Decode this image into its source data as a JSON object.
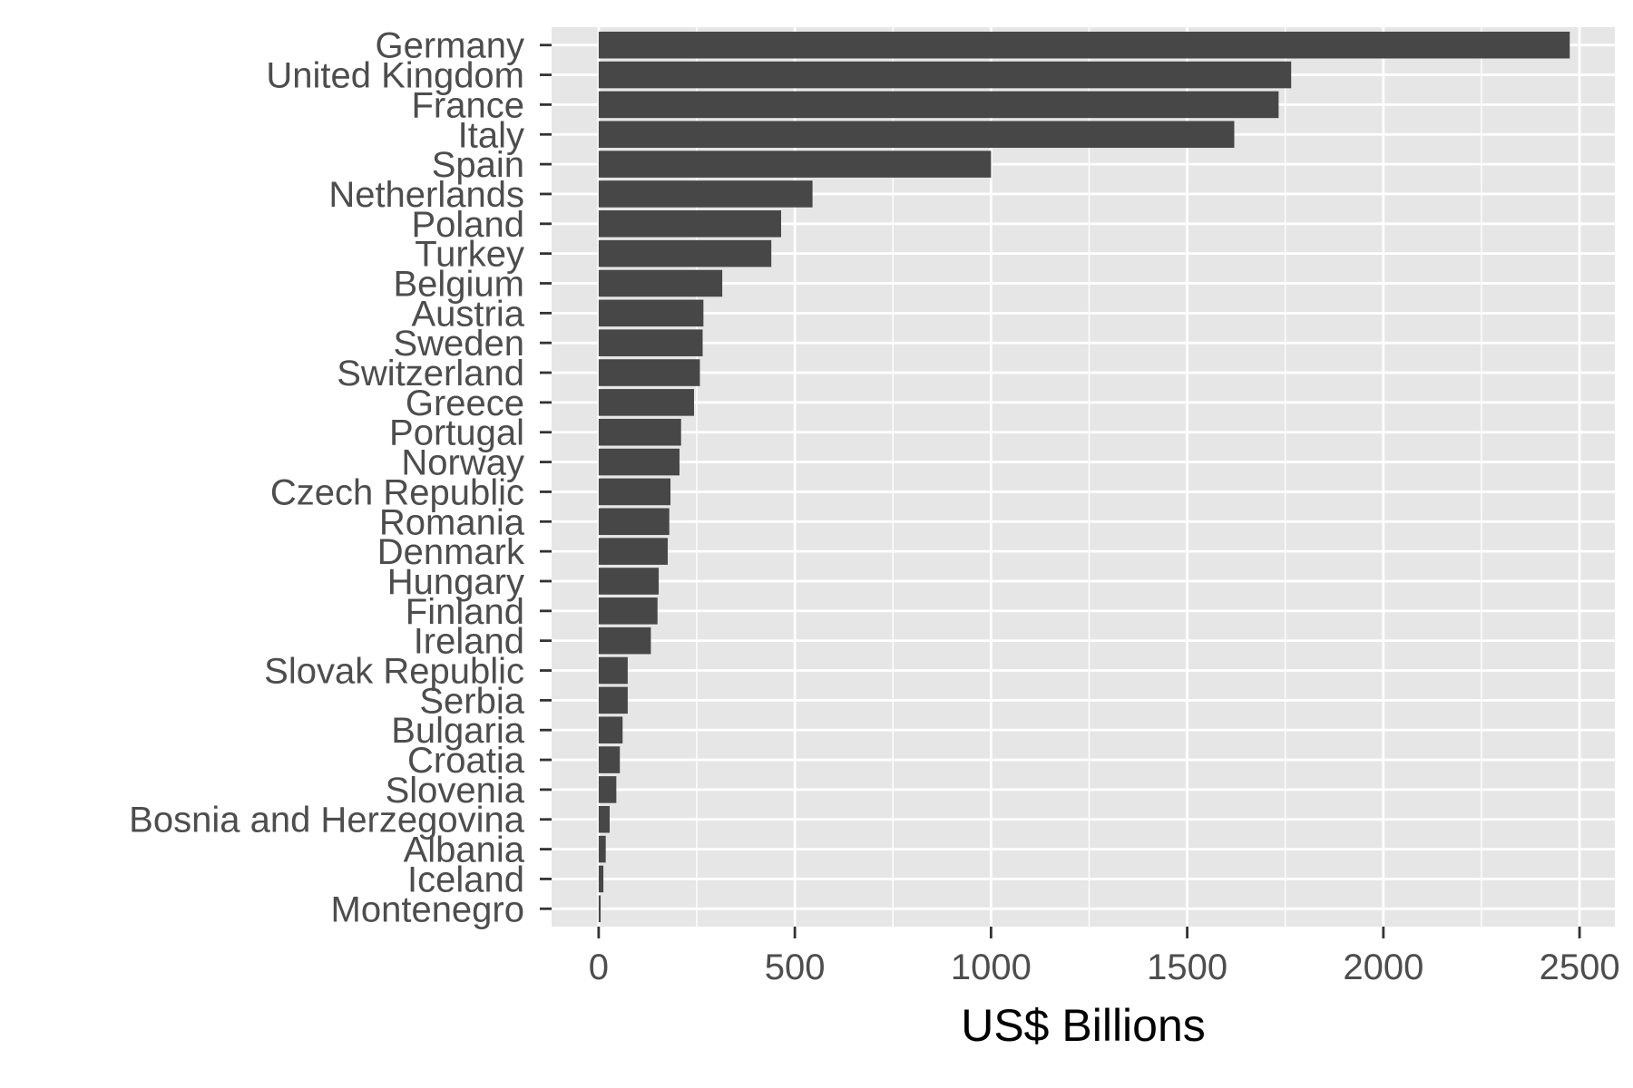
{
  "chart_data": {
    "type": "bar",
    "orientation": "horizontal",
    "title": "",
    "xlabel": "US$ Billions",
    "ylabel": "",
    "xlim": [
      -120,
      2590
    ],
    "xticks": [
      0,
      500,
      1000,
      1500,
      2000,
      2500
    ],
    "grid": true,
    "legend": "none",
    "bar_color": "#474747",
    "panel_color": "#e6e6e6",
    "grid_color": "#ffffff",
    "categories": [
      "Germany",
      "United Kingdom",
      "France",
      "Italy",
      "Spain",
      "Netherlands",
      "Poland",
      "Turkey",
      "Belgium",
      "Austria",
      "Sweden",
      "Switzerland",
      "Greece",
      "Portugal",
      "Norway",
      "Czech Republic",
      "Romania",
      "Denmark",
      "Hungary",
      "Finland",
      "Ireland",
      "Slovak Republic",
      "Serbia",
      "Bulgaria",
      "Croatia",
      "Slovenia",
      "Bosnia and Herzegovina",
      "Albania",
      "Iceland",
      "Montenegro"
    ],
    "values": [
      2475,
      1765,
      1733,
      1620,
      1000,
      545,
      465,
      440,
      315,
      267,
      265,
      258,
      243,
      210,
      206,
      183,
      180,
      176,
      153,
      150,
      133,
      74,
      74,
      61,
      54,
      45,
      28,
      18,
      12,
      5
    ]
  }
}
